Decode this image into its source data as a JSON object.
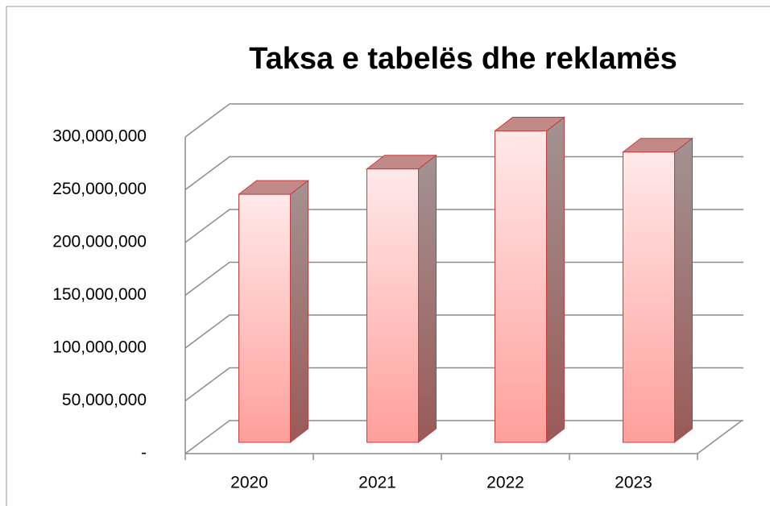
{
  "chart_data": {
    "type": "bar3d",
    "title": "Taksa e tabelës dhe reklamës",
    "categories": [
      "2020",
      "2021",
      "2022",
      "2023"
    ],
    "values": [
      235000000,
      259000000,
      295000000,
      275000000
    ],
    "color": "#ff9e9a",
    "ylim": [
      0,
      300000000
    ],
    "yticks": [
      {
        "value": 0,
        "label": "-"
      },
      {
        "value": 50000000,
        "label": "50,000,000"
      },
      {
        "value": 100000000,
        "label": "100,000,000"
      },
      {
        "value": 150000000,
        "label": "150,000,000"
      },
      {
        "value": 200000000,
        "label": "200,000,000"
      },
      {
        "value": 250000000,
        "label": "250,000,000"
      },
      {
        "value": 300000000,
        "label": "300,000,000"
      }
    ],
    "grid": true
  }
}
